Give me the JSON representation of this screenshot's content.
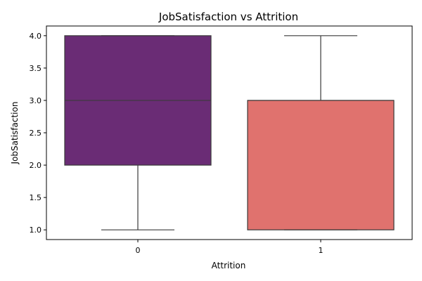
{
  "chart_data": {
    "type": "box",
    "title": "JobSatisfaction vs Attrition",
    "xlabel": "Attrition",
    "ylabel": "JobSatisfaction",
    "categories": [
      "0",
      "1"
    ],
    "boxes": [
      {
        "category": "0",
        "whisker_low": 1.0,
        "q1": 2.0,
        "median": 3.0,
        "q3": 4.0,
        "whisker_high": 4.0,
        "color": "#6a2c75"
      },
      {
        "category": "1",
        "whisker_low": 1.0,
        "q1": 1.0,
        "median": 3.0,
        "q3": 3.0,
        "whisker_high": 4.0,
        "color": "#e0726e"
      }
    ],
    "ylim": [
      0.85,
      4.15
    ],
    "yticks": [
      "1.0",
      "1.5",
      "2.0",
      "2.5",
      "3.0",
      "3.5",
      "4.0"
    ],
    "grid": false,
    "legend": "none"
  }
}
